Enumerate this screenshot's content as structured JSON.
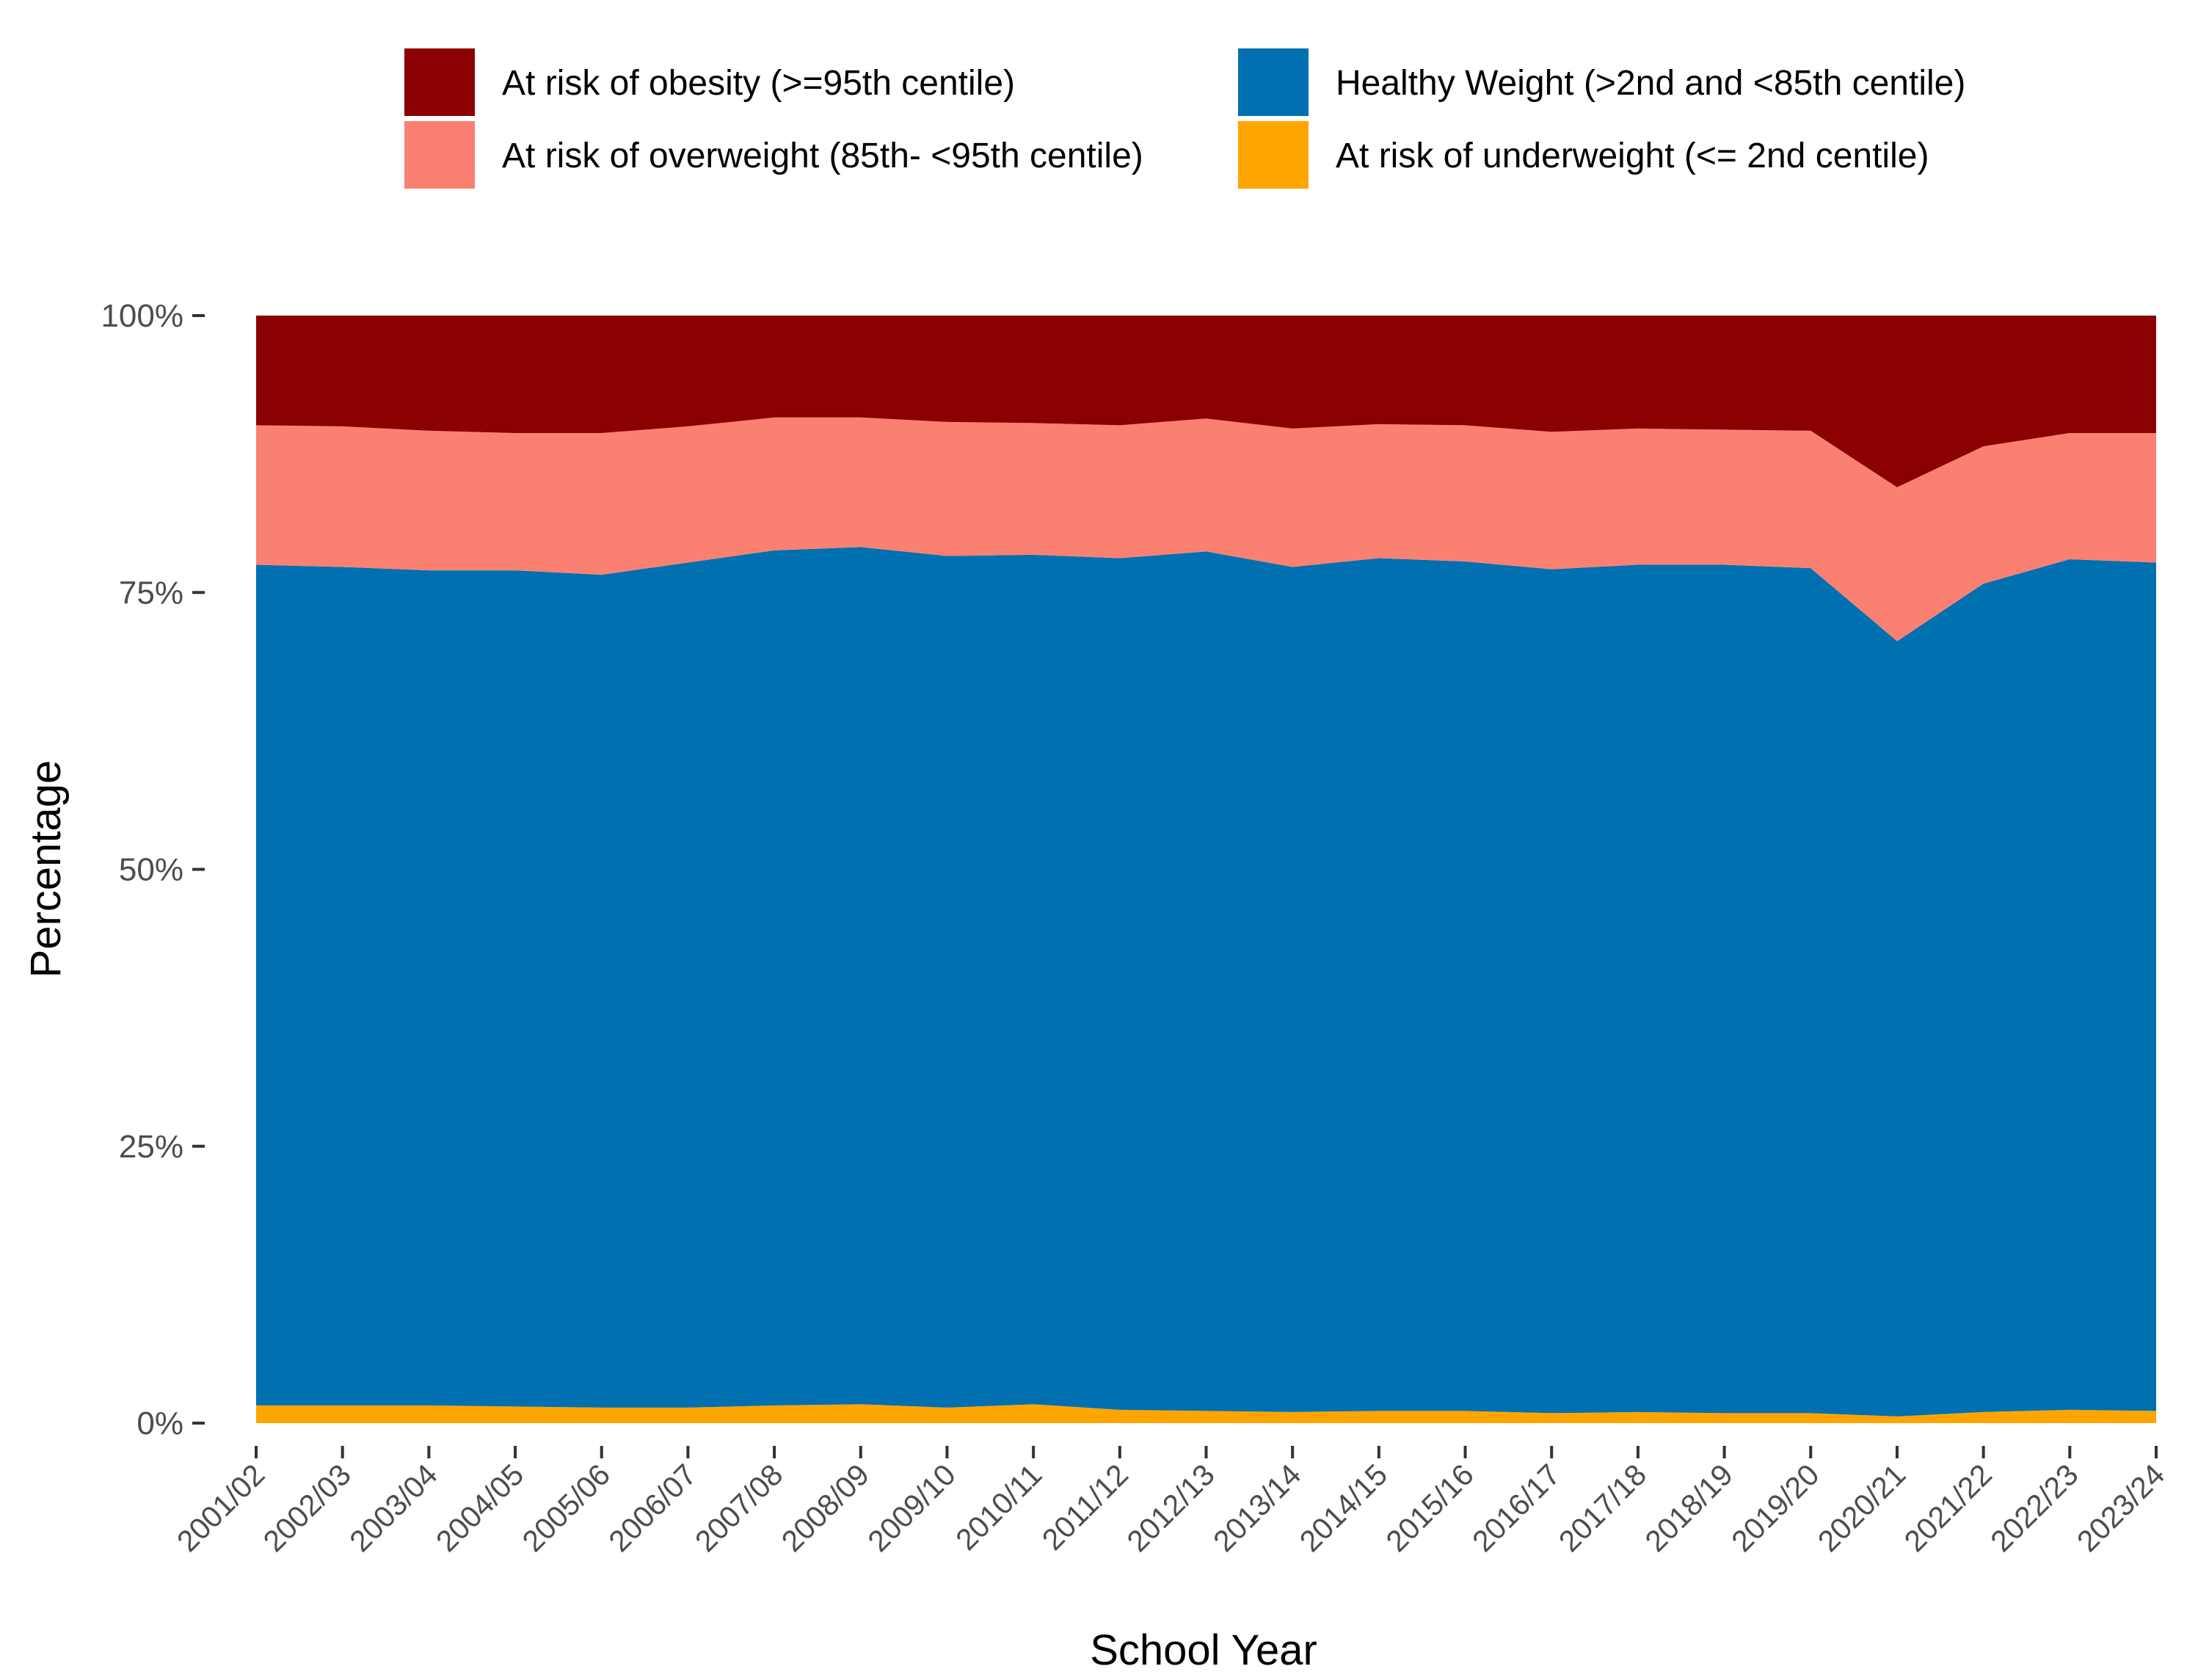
{
  "chart_data": {
    "type": "area",
    "stacked": true,
    "xlabel": "School Year",
    "ylabel": "Percentage",
    "ylim": [
      0,
      100
    ],
    "yticks": [
      "0%",
      "25%",
      "50%",
      "75%",
      "100%"
    ],
    "legend_position": "top",
    "categories": [
      "2001/02",
      "2002/03",
      "2003/04",
      "2004/05",
      "2005/06",
      "2006/07",
      "2007/08",
      "2008/09",
      "2009/10",
      "2010/11",
      "2011/12",
      "2012/13",
      "2013/14",
      "2014/15",
      "2015/16",
      "2016/17",
      "2017/18",
      "2018/19",
      "2019/20",
      "2020/21",
      "2021/22",
      "2022/23",
      "2023/24"
    ],
    "series": [
      {
        "name": "At risk of underweight (<= 2nd centile)",
        "color": "#FFA500",
        "values": [
          1.6,
          1.6,
          1.6,
          1.5,
          1.4,
          1.4,
          1.6,
          1.7,
          1.4,
          1.7,
          1.2,
          1.1,
          1.0,
          1.1,
          1.1,
          0.9,
          1.0,
          0.9,
          0.9,
          0.6,
          1.0,
          1.2,
          1.1
        ]
      },
      {
        "name": "Healthy Weight (>2nd and <85th centile)",
        "color": "#0070B0",
        "values": [
          75.9,
          75.7,
          75.4,
          75.5,
          75.2,
          76.3,
          77.2,
          77.4,
          76.9,
          76.7,
          76.9,
          77.6,
          76.3,
          77.0,
          76.7,
          76.2,
          76.5,
          76.6,
          76.3,
          70.0,
          74.8,
          76.8,
          76.6
        ]
      },
      {
        "name": "At risk of overweight (85th- <95th centile)",
        "color": "#FA8072",
        "values": [
          12.6,
          12.7,
          12.6,
          12.4,
          12.8,
          12.3,
          12.0,
          11.7,
          12.1,
          11.9,
          12.0,
          12.0,
          12.5,
          12.1,
          12.3,
          12.4,
          12.3,
          12.2,
          12.4,
          13.9,
          12.4,
          11.4,
          11.7
        ]
      },
      {
        "name": "At risk of obesity (>=95th centile)",
        "color": "#8B0000",
        "values": [
          9.9,
          10.0,
          10.4,
          10.6,
          10.6,
          10.0,
          9.2,
          9.2,
          9.6,
          9.7,
          9.9,
          9.3,
          10.2,
          9.8,
          9.9,
          10.5,
          10.2,
          10.3,
          10.4,
          15.5,
          11.8,
          10.6,
          10.6
        ]
      }
    ],
    "legend_order": [
      "At risk of obesity (>=95th centile)",
      "Healthy Weight (>2nd and <85th centile)",
      "At risk of overweight (85th- <95th centile)",
      "At risk of underweight (<= 2nd centile)"
    ]
  }
}
